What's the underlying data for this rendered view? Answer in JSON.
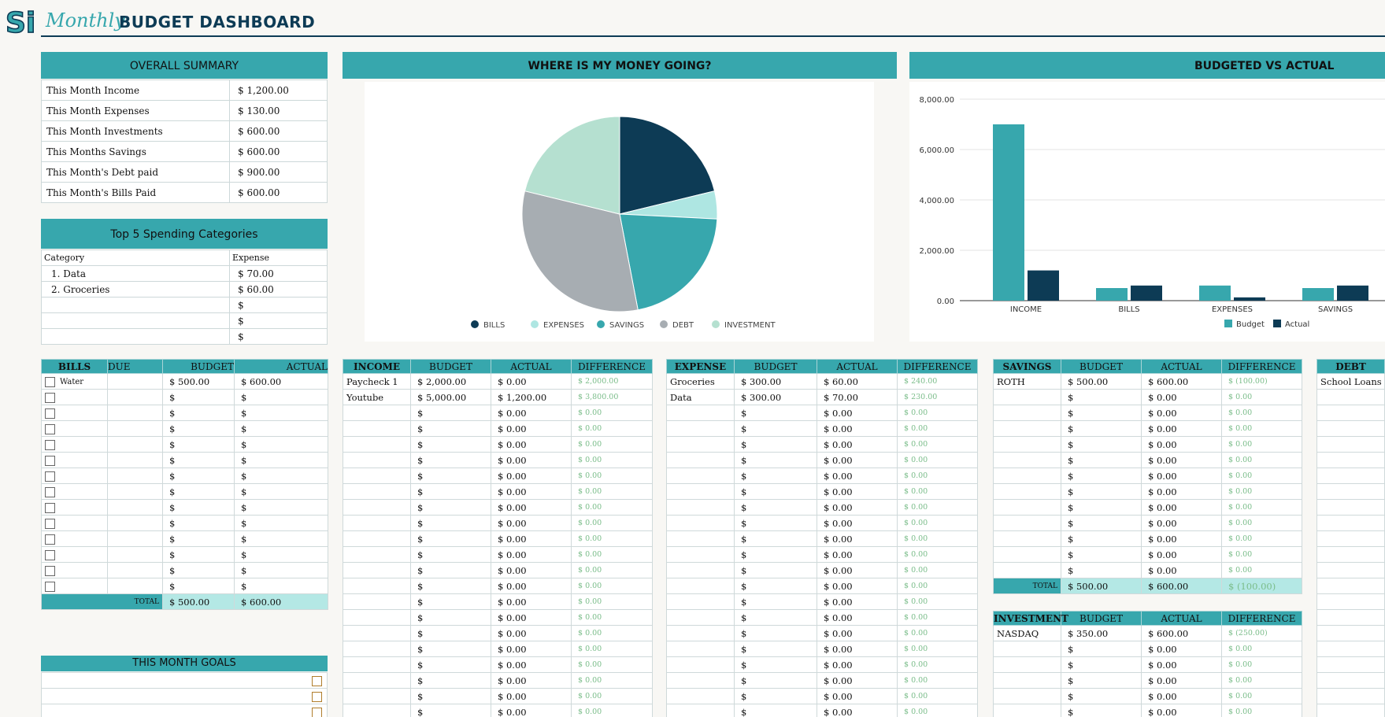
{
  "header": {
    "logo_text": "Si",
    "monthly": "Monthly",
    "title": "BUDGET DASHBOARD"
  },
  "colors": {
    "teal": "#37a7ad",
    "navy": "#0d3b55",
    "light_teal": "#b4e8e5",
    "grey": "#a7adb2",
    "mint": "#b5e0d0"
  },
  "summary": {
    "title": "OVERALL SUMMARY",
    "rows": [
      {
        "label": "This Month Income",
        "value": "$  1,200.00"
      },
      {
        "label": "This Month Expenses",
        "value": "$  130.00"
      },
      {
        "label": "This Month Investments",
        "value": "$  600.00"
      },
      {
        "label": "This Months Savings",
        "value": "$  600.00"
      },
      {
        "label": "This Month's Debt paid",
        "value": "$  900.00"
      },
      {
        "label": "This Month's Bills Paid",
        "value": "$  600.00"
      }
    ]
  },
  "top5": {
    "title": "Top 5 Spending Categories",
    "col_category": "Category",
    "col_expense": "Expense",
    "rows": [
      {
        "category": "1.  Data",
        "expense": "$  70.00"
      },
      {
        "category": "2.  Groceries",
        "expense": "$  60.00"
      },
      {
        "category": "",
        "expense": "$"
      },
      {
        "category": "",
        "expense": "$"
      },
      {
        "category": "",
        "expense": "$"
      }
    ]
  },
  "pie": {
    "title": "WHERE IS MY MONEY GOING?",
    "legend": [
      "BILLS",
      "EXPENSES",
      "SAVINGS",
      "DEBT",
      "INVESTMENT"
    ]
  },
  "bar": {
    "title": "BUDGETED VS ACTUAL"
  },
  "chart_data": [
    {
      "type": "pie",
      "title": "WHERE IS MY MONEY GOING?",
      "categories": [
        "BILLS",
        "EXPENSES",
        "SAVINGS",
        "DEBT",
        "INVESTMENT"
      ],
      "values": [
        600,
        130,
        600,
        900,
        600
      ],
      "colors": [
        "#0d3b55",
        "#aee6e2",
        "#37a7ad",
        "#a7adb2",
        "#b5e0d0"
      ],
      "legend": "bottom"
    },
    {
      "type": "bar",
      "title": "BUDGETED VS ACTUAL",
      "categories": [
        "INCOME",
        "BILLS",
        "EXPENSES",
        "SAVINGS"
      ],
      "series": [
        {
          "name": "Budget",
          "values": [
            7000,
            500,
            600,
            500
          ],
          "color": "#37a7ad"
        },
        {
          "name": "Actual",
          "values": [
            1200,
            600,
            130,
            600
          ],
          "color": "#0d3b55"
        }
      ],
      "yticks": [
        "0.00",
        "2,000.00",
        "4,000.00",
        "6,000.00",
        "8,000.00"
      ],
      "ylim": [
        0,
        8000
      ],
      "legend": "bottom",
      "grid": true
    }
  ],
  "bills": {
    "headers": [
      "BILLS",
      "DUE",
      "BUDGET",
      "ACTUAL"
    ],
    "rows": [
      {
        "name": "Water",
        "budget": "$  500.00",
        "actual": "$  600.00"
      },
      {
        "name": "",
        "budget": "$",
        "actual": "$"
      },
      {
        "name": "",
        "budget": "$",
        "actual": "$"
      },
      {
        "name": "",
        "budget": "$",
        "actual": "$"
      },
      {
        "name": "",
        "budget": "$",
        "actual": "$"
      },
      {
        "name": "",
        "budget": "$",
        "actual": "$"
      },
      {
        "name": "",
        "budget": "$",
        "actual": "$"
      },
      {
        "name": "",
        "budget": "$",
        "actual": "$"
      },
      {
        "name": "",
        "budget": "$",
        "actual": "$"
      },
      {
        "name": "",
        "budget": "$",
        "actual": "$"
      },
      {
        "name": "",
        "budget": "$",
        "actual": "$"
      },
      {
        "name": "",
        "budget": "$",
        "actual": "$"
      },
      {
        "name": "",
        "budget": "$",
        "actual": "$"
      },
      {
        "name": "",
        "budget": "$",
        "actual": "$"
      }
    ],
    "total_label": "TOTAL",
    "total_budget": "$  500.00",
    "total_actual": "$  600.00"
  },
  "goals": {
    "title": "THIS MONTH GOALS",
    "rows": 3
  },
  "income": {
    "headers": [
      "INCOME",
      "BUDGET",
      "ACTUAL",
      "DIFFERENCE"
    ],
    "rows": [
      {
        "name": "Paycheck 1",
        "budget": "$  2,000.00",
        "actual": "$  0.00",
        "diff": "$  2,000.00"
      },
      {
        "name": "Youtube",
        "budget": "$  5,000.00",
        "actual": "$  1,200.00",
        "diff": "$  3,800.00"
      },
      {
        "name": "",
        "budget": "$",
        "actual": "$  0.00",
        "diff": "$  0.00"
      },
      {
        "name": "",
        "budget": "$",
        "actual": "$  0.00",
        "diff": "$  0.00"
      },
      {
        "name": "",
        "budget": "$",
        "actual": "$  0.00",
        "diff": "$  0.00"
      },
      {
        "name": "",
        "budget": "$",
        "actual": "$  0.00",
        "diff": "$  0.00"
      },
      {
        "name": "",
        "budget": "$",
        "actual": "$  0.00",
        "diff": "$  0.00"
      },
      {
        "name": "",
        "budget": "$",
        "actual": "$  0.00",
        "diff": "$  0.00"
      },
      {
        "name": "",
        "budget": "$",
        "actual": "$  0.00",
        "diff": "$  0.00"
      },
      {
        "name": "",
        "budget": "$",
        "actual": "$  0.00",
        "diff": "$  0.00"
      },
      {
        "name": "",
        "budget": "$",
        "actual": "$  0.00",
        "diff": "$  0.00"
      },
      {
        "name": "",
        "budget": "$",
        "actual": "$  0.00",
        "diff": "$  0.00"
      },
      {
        "name": "",
        "budget": "$",
        "actual": "$  0.00",
        "diff": "$  0.00"
      },
      {
        "name": "",
        "budget": "$",
        "actual": "$  0.00",
        "diff": "$  0.00"
      },
      {
        "name": "",
        "budget": "$",
        "actual": "$  0.00",
        "diff": "$  0.00"
      },
      {
        "name": "",
        "budget": "$",
        "actual": "$  0.00",
        "diff": "$  0.00"
      },
      {
        "name": "",
        "budget": "$",
        "actual": "$  0.00",
        "diff": "$  0.00"
      },
      {
        "name": "",
        "budget": "$",
        "actual": "$  0.00",
        "diff": "$  0.00"
      },
      {
        "name": "",
        "budget": "$",
        "actual": "$  0.00",
        "diff": "$  0.00"
      },
      {
        "name": "",
        "budget": "$",
        "actual": "$  0.00",
        "diff": "$  0.00"
      },
      {
        "name": "",
        "budget": "$",
        "actual": "$  0.00",
        "diff": "$  0.00"
      },
      {
        "name": "",
        "budget": "$",
        "actual": "$  0.00",
        "diff": "$  0.00"
      }
    ]
  },
  "expense": {
    "headers": [
      "EXPENSE",
      "BUDGET",
      "ACTUAL",
      "DIFFERENCE"
    ],
    "rows": [
      {
        "name": "Groceries",
        "budget": "$  300.00",
        "actual": "$  60.00",
        "diff": "$  240.00"
      },
      {
        "name": "Data",
        "budget": "$  300.00",
        "actual": "$  70.00",
        "diff": "$  230.00"
      },
      {
        "name": "",
        "budget": "$",
        "actual": "$  0.00",
        "diff": "$  0.00"
      },
      {
        "name": "",
        "budget": "$",
        "actual": "$  0.00",
        "diff": "$  0.00"
      },
      {
        "name": "",
        "budget": "$",
        "actual": "$  0.00",
        "diff": "$  0.00"
      },
      {
        "name": "",
        "budget": "$",
        "actual": "$  0.00",
        "diff": "$  0.00"
      },
      {
        "name": "",
        "budget": "$",
        "actual": "$  0.00",
        "diff": "$  0.00"
      },
      {
        "name": "",
        "budget": "$",
        "actual": "$  0.00",
        "diff": "$  0.00"
      },
      {
        "name": "",
        "budget": "$",
        "actual": "$  0.00",
        "diff": "$  0.00"
      },
      {
        "name": "",
        "budget": "$",
        "actual": "$  0.00",
        "diff": "$  0.00"
      },
      {
        "name": "",
        "budget": "$",
        "actual": "$  0.00",
        "diff": "$  0.00"
      },
      {
        "name": "",
        "budget": "$",
        "actual": "$  0.00",
        "diff": "$  0.00"
      },
      {
        "name": "",
        "budget": "$",
        "actual": "$  0.00",
        "diff": "$  0.00"
      },
      {
        "name": "",
        "budget": "$",
        "actual": "$  0.00",
        "diff": "$  0.00"
      },
      {
        "name": "",
        "budget": "$",
        "actual": "$  0.00",
        "diff": "$  0.00"
      },
      {
        "name": "",
        "budget": "$",
        "actual": "$  0.00",
        "diff": "$  0.00"
      },
      {
        "name": "",
        "budget": "$",
        "actual": "$  0.00",
        "diff": "$  0.00"
      },
      {
        "name": "",
        "budget": "$",
        "actual": "$  0.00",
        "diff": "$  0.00"
      },
      {
        "name": "",
        "budget": "$",
        "actual": "$  0.00",
        "diff": "$  0.00"
      },
      {
        "name": "",
        "budget": "$",
        "actual": "$  0.00",
        "diff": "$  0.00"
      },
      {
        "name": "",
        "budget": "$",
        "actual": "$  0.00",
        "diff": "$  0.00"
      },
      {
        "name": "",
        "budget": "$",
        "actual": "$  0.00",
        "diff": "$  0.00"
      }
    ]
  },
  "savings": {
    "headers": [
      "SAVINGS",
      "BUDGET",
      "ACTUAL",
      "DIFFERENCE"
    ],
    "rows": [
      {
        "name": "ROTH",
        "budget": "$  500.00",
        "actual": "$  600.00",
        "diff": "$  (100.00)"
      },
      {
        "name": "",
        "budget": "$",
        "actual": "$  0.00",
        "diff": "$  0.00"
      },
      {
        "name": "",
        "budget": "$",
        "actual": "$  0.00",
        "diff": "$  0.00"
      },
      {
        "name": "",
        "budget": "$",
        "actual": "$  0.00",
        "diff": "$  0.00"
      },
      {
        "name": "",
        "budget": "$",
        "actual": "$  0.00",
        "diff": "$  0.00"
      },
      {
        "name": "",
        "budget": "$",
        "actual": "$  0.00",
        "diff": "$  0.00"
      },
      {
        "name": "",
        "budget": "$",
        "actual": "$  0.00",
        "diff": "$  0.00"
      },
      {
        "name": "",
        "budget": "$",
        "actual": "$  0.00",
        "diff": "$  0.00"
      },
      {
        "name": "",
        "budget": "$",
        "actual": "$  0.00",
        "diff": "$  0.00"
      },
      {
        "name": "",
        "budget": "$",
        "actual": "$  0.00",
        "diff": "$  0.00"
      },
      {
        "name": "",
        "budget": "$",
        "actual": "$  0.00",
        "diff": "$  0.00"
      },
      {
        "name": "",
        "budget": "$",
        "actual": "$  0.00",
        "diff": "$  0.00"
      },
      {
        "name": "",
        "budget": "$",
        "actual": "$  0.00",
        "diff": "$  0.00"
      }
    ],
    "total_label": "TOTAL",
    "total_budget": "$  500.00",
    "total_actual": "$  600.00",
    "total_diff": "$  (100.00)"
  },
  "investment": {
    "headers": [
      "INVESTMENT",
      "BUDGET",
      "ACTUAL",
      "DIFFERENCE"
    ],
    "rows": [
      {
        "name": "NASDAQ",
        "budget": "$  350.00",
        "actual": "$  600.00",
        "diff": "$  (250.00)"
      },
      {
        "name": "",
        "budget": "$",
        "actual": "$  0.00",
        "diff": "$  0.00"
      },
      {
        "name": "",
        "budget": "$",
        "actual": "$  0.00",
        "diff": "$  0.00"
      },
      {
        "name": "",
        "budget": "$",
        "actual": "$  0.00",
        "diff": "$  0.00"
      },
      {
        "name": "",
        "budget": "$",
        "actual": "$  0.00",
        "diff": "$  0.00"
      },
      {
        "name": "",
        "budget": "$",
        "actual": "$  0.00",
        "diff": "$  0.00"
      }
    ]
  },
  "debt": {
    "headers": [
      "DEBT"
    ],
    "rows": [
      {
        "name": "School Loans"
      },
      {
        "name": ""
      },
      {
        "name": ""
      },
      {
        "name": ""
      },
      {
        "name": ""
      },
      {
        "name": ""
      },
      {
        "name": ""
      },
      {
        "name": ""
      },
      {
        "name": ""
      },
      {
        "name": ""
      },
      {
        "name": ""
      },
      {
        "name": ""
      },
      {
        "name": ""
      },
      {
        "name": ""
      },
      {
        "name": ""
      },
      {
        "name": ""
      },
      {
        "name": ""
      },
      {
        "name": ""
      },
      {
        "name": ""
      },
      {
        "name": ""
      },
      {
        "name": ""
      },
      {
        "name": ""
      }
    ]
  }
}
